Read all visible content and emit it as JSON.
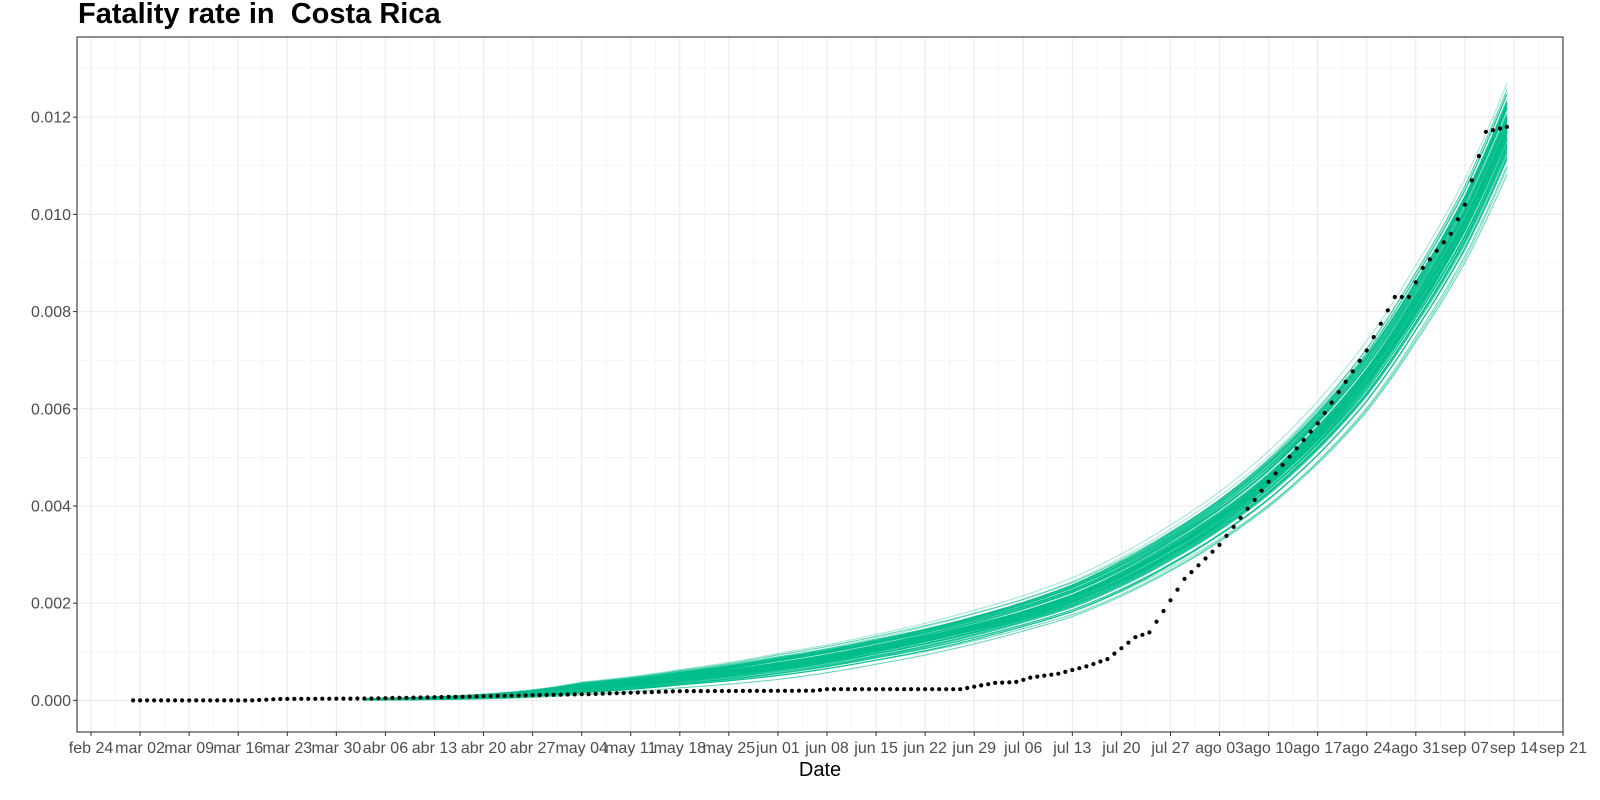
{
  "chart_data": {
    "type": "line",
    "title": "Fatality rate in  Costa Rica",
    "xlabel": "Date",
    "ylabel": "",
    "x_range": [
      "2020-02-22",
      "2020-09-21"
    ],
    "ylim": [
      -0.00065,
      0.01365
    ],
    "x_ticks": [
      {
        "date": "2020-02-24",
        "label": "feb 24"
      },
      {
        "date": "2020-03-02",
        "label": "mar 02"
      },
      {
        "date": "2020-03-09",
        "label": "mar 09"
      },
      {
        "date": "2020-03-16",
        "label": "mar 16"
      },
      {
        "date": "2020-03-23",
        "label": "mar 23"
      },
      {
        "date": "2020-03-30",
        "label": "mar 30"
      },
      {
        "date": "2020-04-06",
        "label": "abr 06"
      },
      {
        "date": "2020-04-13",
        "label": "abr 13"
      },
      {
        "date": "2020-04-20",
        "label": "abr 20"
      },
      {
        "date": "2020-04-27",
        "label": "abr 27"
      },
      {
        "date": "2020-05-04",
        "label": "may 04"
      },
      {
        "date": "2020-05-11",
        "label": "may 11"
      },
      {
        "date": "2020-05-18",
        "label": "may 18"
      },
      {
        "date": "2020-05-25",
        "label": "may 25"
      },
      {
        "date": "2020-06-01",
        "label": "jun 01"
      },
      {
        "date": "2020-06-08",
        "label": "jun 08"
      },
      {
        "date": "2020-06-15",
        "label": "jun 15"
      },
      {
        "date": "2020-06-22",
        "label": "jun 22"
      },
      {
        "date": "2020-06-29",
        "label": "jun 29"
      },
      {
        "date": "2020-07-06",
        "label": "jul 06"
      },
      {
        "date": "2020-07-13",
        "label": "jul 13"
      },
      {
        "date": "2020-07-20",
        "label": "jul 20"
      },
      {
        "date": "2020-07-27",
        "label": "jul 27"
      },
      {
        "date": "2020-08-03",
        "label": "ago 03"
      },
      {
        "date": "2020-08-10",
        "label": "ago 10"
      },
      {
        "date": "2020-08-17",
        "label": "ago 17"
      },
      {
        "date": "2020-08-24",
        "label": "ago 24"
      },
      {
        "date": "2020-08-31",
        "label": "ago 31"
      },
      {
        "date": "2020-09-07",
        "label": "sep 07"
      },
      {
        "date": "2020-09-14",
        "label": "sep 14"
      },
      {
        "date": "2020-09-21",
        "label": "sep 21"
      }
    ],
    "y_ticks": [
      0.0,
      0.002,
      0.004,
      0.006,
      0.008,
      0.01,
      0.012
    ],
    "y_tick_labels": [
      "0.000",
      "0.002",
      "0.004",
      "0.006",
      "0.008",
      "0.010",
      "0.012"
    ],
    "grid": true,
    "simulations": {
      "count": 80,
      "color": "#00BE8C",
      "start": "2020-04-03",
      "end": "2020-09-13",
      "center_points": [
        {
          "date": "2020-04-03",
          "value": 2e-05
        },
        {
          "date": "2020-04-20",
          "value": 8e-05
        },
        {
          "date": "2020-05-04",
          "value": 0.00025
        },
        {
          "date": "2020-05-18",
          "value": 0.00045
        },
        {
          "date": "2020-06-01",
          "value": 0.0007
        },
        {
          "date": "2020-06-15",
          "value": 0.00105
        },
        {
          "date": "2020-06-29",
          "value": 0.0015
        },
        {
          "date": "2020-07-13",
          "value": 0.0021
        },
        {
          "date": "2020-07-27",
          "value": 0.0031
        },
        {
          "date": "2020-08-10",
          "value": 0.0045
        },
        {
          "date": "2020-08-24",
          "value": 0.0066
        },
        {
          "date": "2020-08-31",
          "value": 0.0081
        },
        {
          "date": "2020-09-07",
          "value": 0.0098
        },
        {
          "date": "2020-09-13",
          "value": 0.0117
        }
      ],
      "spread_points": [
        {
          "date": "2020-04-03",
          "value": 1e-05
        },
        {
          "date": "2020-05-04",
          "value": 8e-05
        },
        {
          "date": "2020-06-01",
          "value": 0.00015
        },
        {
          "date": "2020-07-06",
          "value": 0.0002
        },
        {
          "date": "2020-08-03",
          "value": 0.0003
        },
        {
          "date": "2020-08-24",
          "value": 0.00045
        },
        {
          "date": "2020-09-13",
          "value": 0.0006
        }
      ]
    },
    "observed": {
      "color": "#000000",
      "start": "2020-03-01",
      "end": "2020-09-13",
      "key_points": [
        {
          "date": "2020-03-01",
          "value": 0.0
        },
        {
          "date": "2020-03-18",
          "value": 0.0
        },
        {
          "date": "2020-03-22",
          "value": 3e-05
        },
        {
          "date": "2020-04-04",
          "value": 4e-05
        },
        {
          "date": "2020-04-18",
          "value": 8e-05
        },
        {
          "date": "2020-05-05",
          "value": 0.00013
        },
        {
          "date": "2020-05-18",
          "value": 0.00019
        },
        {
          "date": "2020-06-06",
          "value": 0.0002
        },
        {
          "date": "2020-06-08",
          "value": 0.00023
        },
        {
          "date": "2020-06-27",
          "value": 0.00023
        },
        {
          "date": "2020-07-02",
          "value": 0.00036
        },
        {
          "date": "2020-07-05",
          "value": 0.00038
        },
        {
          "date": "2020-07-07",
          "value": 0.00047
        },
        {
          "date": "2020-07-11",
          "value": 0.00055
        },
        {
          "date": "2020-07-15",
          "value": 0.0007
        },
        {
          "date": "2020-07-18",
          "value": 0.00085
        },
        {
          "date": "2020-07-22",
          "value": 0.0013
        },
        {
          "date": "2020-07-24",
          "value": 0.0014
        },
        {
          "date": "2020-07-29",
          "value": 0.0025
        },
        {
          "date": "2020-08-03",
          "value": 0.0032
        },
        {
          "date": "2020-08-10",
          "value": 0.0045
        },
        {
          "date": "2020-08-17",
          "value": 0.0057
        },
        {
          "date": "2020-08-24",
          "value": 0.0072
        },
        {
          "date": "2020-08-28",
          "value": 0.0083
        },
        {
          "date": "2020-08-30",
          "value": 0.0083
        },
        {
          "date": "2020-09-01",
          "value": 0.0089
        },
        {
          "date": "2020-09-05",
          "value": 0.0096
        },
        {
          "date": "2020-09-07",
          "value": 0.0102
        },
        {
          "date": "2020-09-10",
          "value": 0.0117
        },
        {
          "date": "2020-09-13",
          "value": 0.0118
        }
      ]
    }
  }
}
